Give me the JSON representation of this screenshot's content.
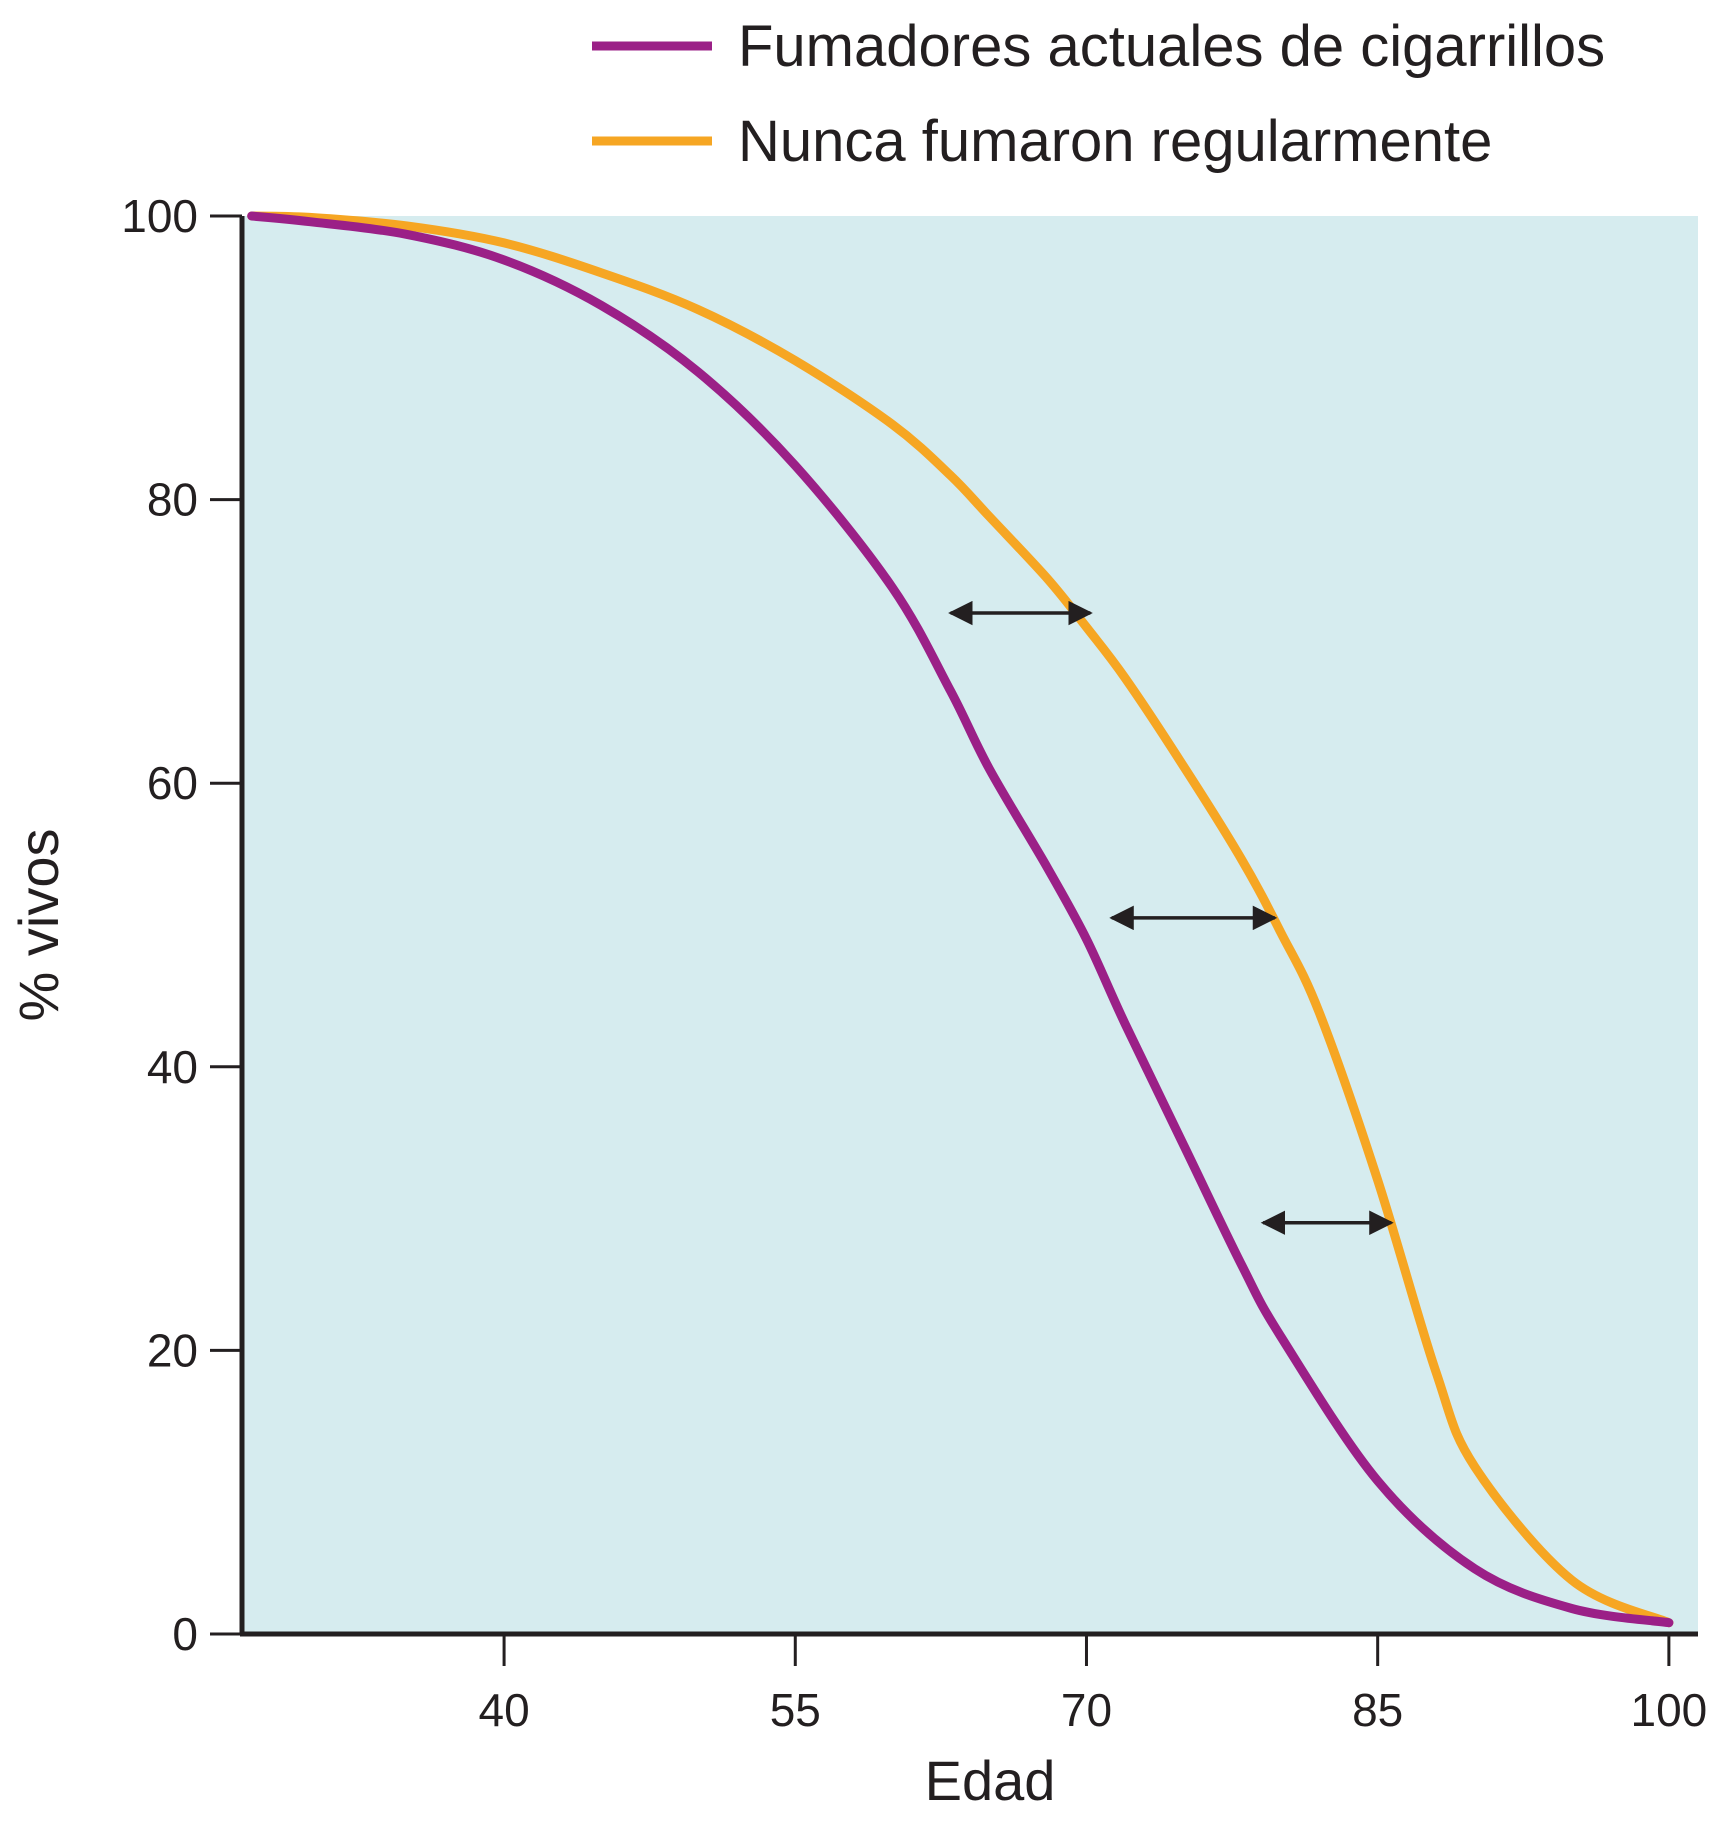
{
  "chart_data": {
    "type": "line",
    "xlabel": "Edad",
    "ylabel": "% vivos",
    "xlim": [
      26.5,
      101.5
    ],
    "ylim": [
      0,
      100
    ],
    "x_ticks": [
      40,
      55,
      70,
      85,
      100
    ],
    "y_ticks": [
      0,
      20,
      40,
      60,
      80,
      100
    ],
    "plot_background": "#d6ecef",
    "legend_position": "top",
    "series": [
      {
        "name": "Fumadores actuales de cigarrillos",
        "color": "#9b2087",
        "x": [
          27,
          30,
          35,
          40,
          45,
          50,
          55,
          60,
          63,
          65,
          68,
          70,
          72,
          75,
          78,
          80,
          85,
          90,
          95,
          100
        ],
        "y": [
          100,
          99.6,
          98.7,
          96.9,
          93.7,
          89,
          82.4,
          73.8,
          66.5,
          61,
          54,
          49,
          43,
          34.5,
          26,
          21,
          10.8,
          4.6,
          1.8,
          0.8
        ]
      },
      {
        "name": "Nunca fumaron regularmente",
        "color": "#f6a623",
        "x": [
          27,
          30,
          35,
          40,
          45,
          50,
          55,
          60,
          63,
          65,
          68,
          70,
          72,
          75,
          78,
          80,
          82,
          85,
          88,
          90,
          95,
          100
        ],
        "y": [
          100,
          99.9,
          99.3,
          98.1,
          96,
          93.4,
          89.8,
          85.3,
          81.7,
          78.8,
          74.4,
          71,
          67.4,
          61.2,
          54.6,
          49.5,
          43.8,
          32,
          18.5,
          11.8,
          3.8,
          0.8
        ]
      }
    ],
    "annotations": [
      {
        "type": "double-arrow",
        "y": 72,
        "x_from": 63,
        "x_to": 70.2
      },
      {
        "type": "double-arrow",
        "y": 50.5,
        "x_from": 71.3,
        "x_to": 79.7
      },
      {
        "type": "double-arrow",
        "y": 29,
        "x_from": 79.1,
        "x_to": 85.7
      }
    ]
  }
}
